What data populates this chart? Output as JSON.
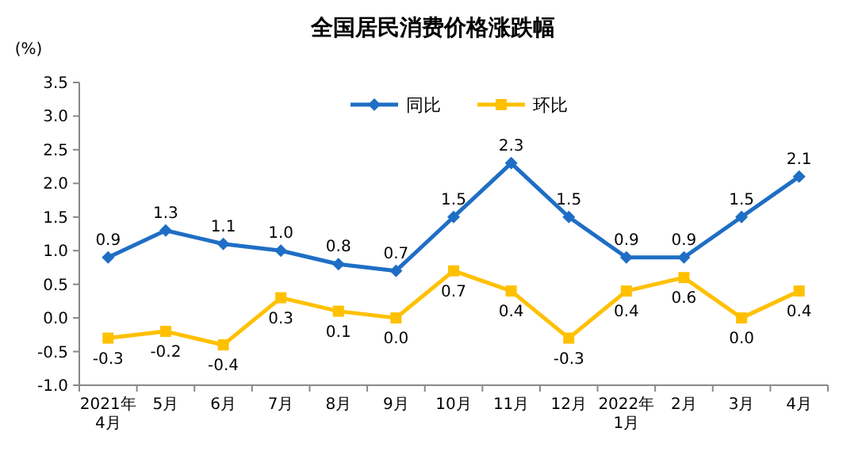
{
  "chart_data": {
    "type": "line",
    "title": "全国居民消费价格涨跌幅",
    "ylabel": "(%)",
    "categories": [
      "2021年\n4月",
      "5月",
      "6月",
      "7月",
      "8月",
      "9月",
      "10月",
      "11月",
      "12月",
      "2022年\n1月",
      "2月",
      "3月",
      "4月"
    ],
    "series": [
      {
        "name": "同比",
        "color": "#1f6ec5",
        "marker": "diamond",
        "values": [
          0.9,
          1.3,
          1.1,
          1.0,
          0.8,
          0.7,
          1.5,
          2.3,
          1.5,
          0.9,
          0.9,
          1.5,
          2.1
        ],
        "value_labels": [
          "0.9",
          "1.3",
          "1.1",
          "1.0",
          "0.8",
          "0.7",
          "1.5",
          "2.3",
          "1.5",
          "0.9",
          "0.9",
          "1.5",
          "2.1"
        ]
      },
      {
        "name": "环比",
        "color": "#ffc000",
        "marker": "square",
        "values": [
          -0.3,
          -0.2,
          -0.4,
          0.3,
          0.1,
          0.0,
          0.7,
          0.4,
          -0.3,
          0.4,
          0.6,
          0.0,
          0.4
        ],
        "value_labels": [
          "-0.3",
          "-0.2",
          "-0.4",
          "0.3",
          "0.1",
          "0.0",
          "0.7",
          "0.4",
          "-0.3",
          "0.4",
          "0.6",
          "0.0",
          "0.4"
        ]
      }
    ],
    "ylim": [
      -1.0,
      3.5
    ],
    "yticks": [
      {
        "value": -1.0,
        "label": "-1.0"
      },
      {
        "value": -0.5,
        "label": "-0.5"
      },
      {
        "value": 0,
        "label": "0.0"
      },
      {
        "value": 0.5,
        "label": "0.5"
      },
      {
        "value": 1.0,
        "label": "1.0"
      },
      {
        "value": 1.5,
        "label": "1.5"
      },
      {
        "value": 2.0,
        "label": "2.0"
      },
      {
        "value": 2.5,
        "label": "2.5"
      },
      {
        "value": 3.0,
        "label": "3.0"
      },
      {
        "value": 3.5,
        "label": "3.5"
      }
    ],
    "legend": "top",
    "grid": false,
    "line_style": "solid"
  }
}
